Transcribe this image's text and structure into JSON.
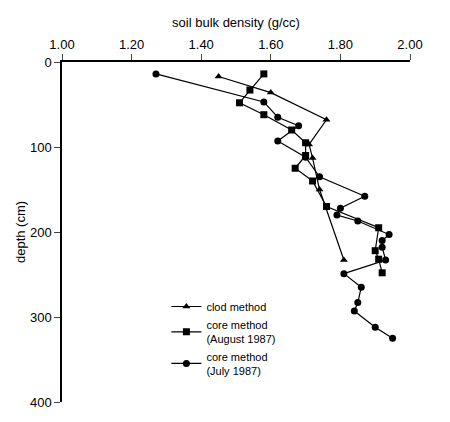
{
  "chart_data": {
    "type": "line",
    "x_label": "soil bulk density (g/cc)",
    "y_label": "depth (cm)",
    "xlim": [
      1.0,
      2.0
    ],
    "xticks": [
      {
        "value": 1.0,
        "label": "1.00"
      },
      {
        "value": 1.2,
        "label": "1.20"
      },
      {
        "value": 1.4,
        "label": "1.40"
      },
      {
        "value": 1.6,
        "label": "1.60"
      },
      {
        "value": 1.8,
        "label": "1.80"
      },
      {
        "value": 2.0,
        "label": "2.00"
      }
    ],
    "ylim": [
      0,
      400
    ],
    "yticks": [
      0,
      100,
      200,
      300,
      400
    ],
    "grid": false,
    "legend": "lower center",
    "series": [
      {
        "name": "clod method",
        "color": "#000000",
        "marker": "triangle",
        "line_style": "solid",
        "x": [
          1.45,
          1.6,
          1.76,
          1.71,
          1.72,
          1.74,
          1.81
        ],
        "values": [
          17,
          36,
          68,
          97,
          113,
          150,
          233
        ]
      },
      {
        "name": "core method\n(August 1987)",
        "color": "#000000",
        "marker": "square",
        "line_style": "solid",
        "x": [
          1.58,
          1.54,
          1.51,
          1.58,
          1.66,
          1.7,
          1.7,
          1.67,
          1.72,
          1.76,
          1.91,
          1.9,
          1.91,
          1.92
        ],
        "values": [
          14,
          33,
          48,
          62,
          80,
          95,
          110,
          125,
          140,
          170,
          195,
          222,
          232,
          248
        ]
      },
      {
        "name": "core method\n(July 1987)",
        "color": "#000000",
        "marker": "circle",
        "line_style": "solid",
        "x": [
          1.27,
          1.58,
          1.62,
          1.68,
          1.62,
          1.7,
          1.74,
          1.87,
          1.8,
          1.79,
          1.85,
          1.94,
          1.92,
          1.92,
          1.93,
          1.81,
          1.86,
          1.85,
          1.84,
          1.9,
          1.95
        ],
        "values": [
          14,
          47,
          65,
          75,
          93,
          112,
          135,
          158,
          172,
          180,
          187,
          203,
          210,
          218,
          233,
          249,
          265,
          283,
          293,
          312,
          325
        ]
      }
    ]
  }
}
